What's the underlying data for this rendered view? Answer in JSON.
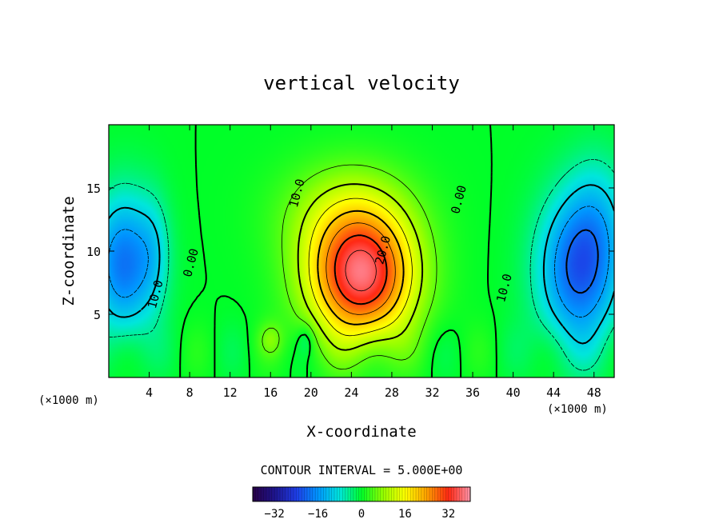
{
  "chart_data": {
    "type": "heatmap",
    "title": "vertical velocity",
    "xlabel": "X-coordinate",
    "ylabel": "Z-coordinate",
    "x_unit": "(×1000 m)",
    "z_unit": "(×1000 m)",
    "xlim": [
      0,
      50
    ],
    "ylim": [
      0,
      20
    ],
    "x_ticks": [
      4,
      8,
      12,
      16,
      20,
      24,
      28,
      32,
      36,
      40,
      44,
      48
    ],
    "y_ticks": [
      5,
      10,
      15
    ],
    "contour_interval_text": "CONTOUR INTERVAL = 5.000E+00",
    "contour_labels": [
      {
        "text": "10.0",
        "x": 19,
        "z": 14.5
      },
      {
        "text": "20.0",
        "x": 27.5,
        "z": 10
      },
      {
        "text": "0.00",
        "x": 35,
        "z": 14
      },
      {
        "text": "0.00",
        "x": 8.5,
        "z": 9
      },
      {
        "text": "10.0",
        "x": 5,
        "z": 6.5
      },
      {
        "text": "10.0",
        "x": 39.5,
        "z": 7
      }
    ],
    "extrema": {
      "max": {
        "x": 25,
        "z": 8,
        "value": 35
      },
      "min_left": {
        "x": 1,
        "z": 9,
        "value": -18
      },
      "min_right": {
        "x": 46.5,
        "z": 8.5,
        "value": -20
      }
    },
    "colorbar": {
      "range": [
        -40,
        40
      ],
      "tick_values": [
        -32,
        -16,
        0,
        16,
        32
      ],
      "tick_labels": [
        "−32",
        "−16",
        "0",
        "16",
        "32"
      ]
    }
  }
}
